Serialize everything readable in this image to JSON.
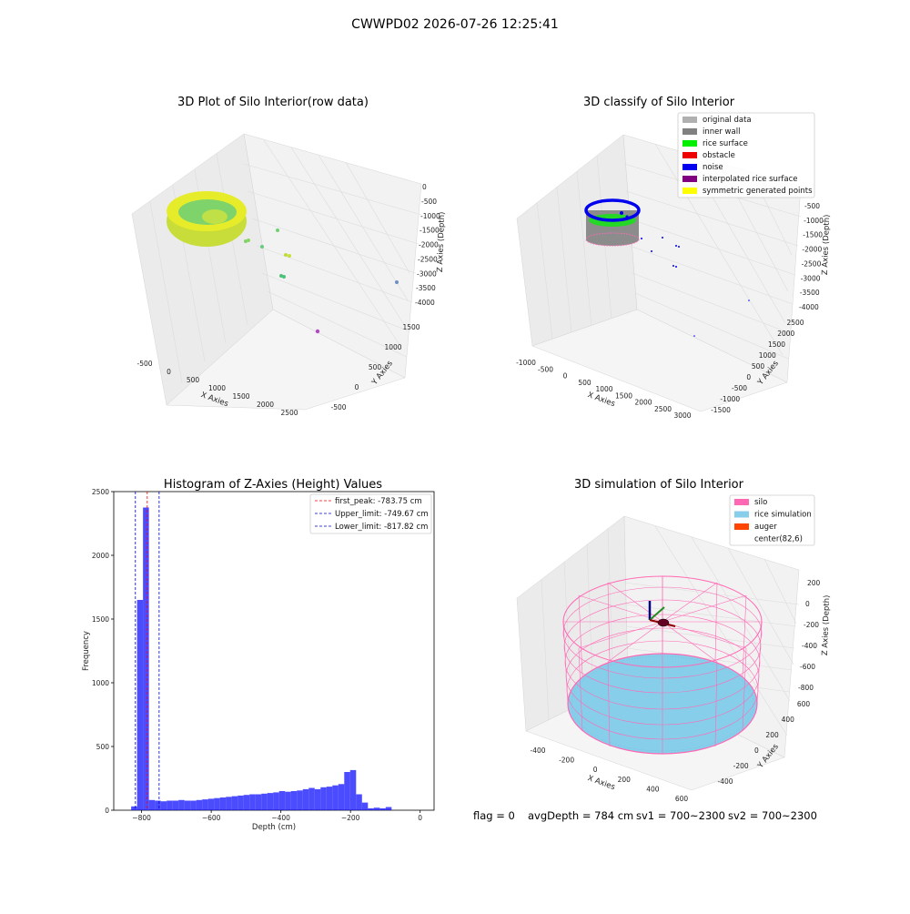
{
  "suptitle": "CWWPD02 2026-07-26 12:25:41",
  "footer": {
    "flag": "flag = 0",
    "avg_depth": "avgDepth = 784 cm",
    "sv1": "sv1 = 700~2300",
    "sv2": "sv2 = 700~2300"
  },
  "panels": {
    "raw": {
      "title": "3D Plot of Silo Interior(row data)",
      "xlabel": "X Axies",
      "ylabel": "Y Axies",
      "zlabel": "Z Axies (Depth)",
      "xticks": [
        "-500",
        "0",
        "500",
        "1000",
        "1500",
        "2000",
        "2500"
      ],
      "yticks": [
        "-500",
        "0",
        "500",
        "1000",
        "1500"
      ],
      "zticks": [
        "0",
        "-500",
        "-1000",
        "-1500",
        "-2000",
        "-2500",
        "-3000",
        "-3500",
        "-4000"
      ]
    },
    "classify": {
      "title": "3D classify of Silo Interior",
      "xlabel": "X Axies",
      "ylabel": "Y Axies",
      "zlabel": "Z Axies (Depth)",
      "xticks": [
        "-1000",
        "-500",
        "0",
        "500",
        "1000",
        "1500",
        "2000",
        "2500",
        "3000"
      ],
      "yticks": [
        "-1500",
        "-1000",
        "-500",
        "0",
        "500",
        "1000",
        "1500",
        "2000",
        "2500"
      ],
      "zticks": [
        "-500",
        "-1000",
        "-1500",
        "-2000",
        "-2500",
        "-3000",
        "-3500",
        "-4000"
      ],
      "legend": [
        {
          "label": "original data",
          "color": "#b0b0b0"
        },
        {
          "label": "inner wall",
          "color": "#808080"
        },
        {
          "label": "rice surface",
          "color": "#00ee00"
        },
        {
          "label": "obstacle",
          "color": "#ee0000"
        },
        {
          "label": "noise",
          "color": "#0000ee"
        },
        {
          "label": "interpolated rice surface",
          "color": "#800080"
        },
        {
          "label": "symmetric generated points",
          "color": "#ffff00"
        }
      ]
    },
    "histogram": {
      "title": "Histogram of Z-Axies (Height) Values",
      "xlabel": "Depth (cm)",
      "ylabel": "Frequency",
      "legend": [
        {
          "label": "first_peak: -783.75 cm",
          "color": "#ff0000"
        },
        {
          "label": "Upper_limit: -749.67 cm",
          "color": "#0000cc"
        },
        {
          "label": "Lower_limit: -817.82 cm",
          "color": "#0000cc"
        }
      ]
    },
    "simulation": {
      "title": "3D simulation of Silo Interior",
      "xlabel": "X Axies",
      "ylabel": "Y Axies",
      "zlabel": "Z Axies (Depth)",
      "xticks": [
        "-400",
        "-200",
        "0",
        "200",
        "400",
        "600"
      ],
      "yticks": [
        "-400",
        "-200",
        "0",
        "200",
        "400",
        "600"
      ],
      "zticks": [
        "200",
        "0",
        "-200",
        "-400",
        "-600",
        "-800"
      ],
      "legend": [
        {
          "label": "silo",
          "color": "#ff69b4"
        },
        {
          "label": "rice simulation",
          "color": "#87ceeb"
        },
        {
          "label": "auger",
          "color": "#ff4500"
        },
        {
          "label": "center(82,6)",
          "color": ""
        }
      ]
    }
  },
  "chart_data": {
    "type": "bar",
    "title": "Histogram of Z-Axies (Height) Values",
    "xlabel": "Depth (cm)",
    "ylabel": "Frequency",
    "xlim": [
      -880,
      40
    ],
    "ylim": [
      0,
      2500
    ],
    "xticks": [
      -800,
      -600,
      -400,
      -200,
      0
    ],
    "yticks": [
      0,
      500,
      1000,
      1500,
      2000,
      2500
    ],
    "bar_color": "#0000ff",
    "bin_start": -830,
    "bin_width": 17,
    "values": [
      30,
      1650,
      2375,
      80,
      75,
      70,
      75,
      75,
      80,
      75,
      75,
      80,
      85,
      90,
      95,
      100,
      105,
      110,
      115,
      120,
      125,
      125,
      130,
      135,
      140,
      150,
      145,
      150,
      155,
      165,
      175,
      165,
      180,
      185,
      195,
      205,
      300,
      315,
      125,
      60,
      15,
      20,
      15,
      25
    ],
    "vlines": [
      {
        "name": "first_peak: -783.75 cm",
        "x": -783.75,
        "color": "#ff0000"
      },
      {
        "name": "Upper_limit: -749.67 cm",
        "x": -749.67,
        "color": "#0000cc"
      },
      {
        "name": "Lower_limit: -817.82 cm",
        "x": -817.82,
        "color": "#0000cc"
      }
    ],
    "legend_position": "top-right"
  }
}
